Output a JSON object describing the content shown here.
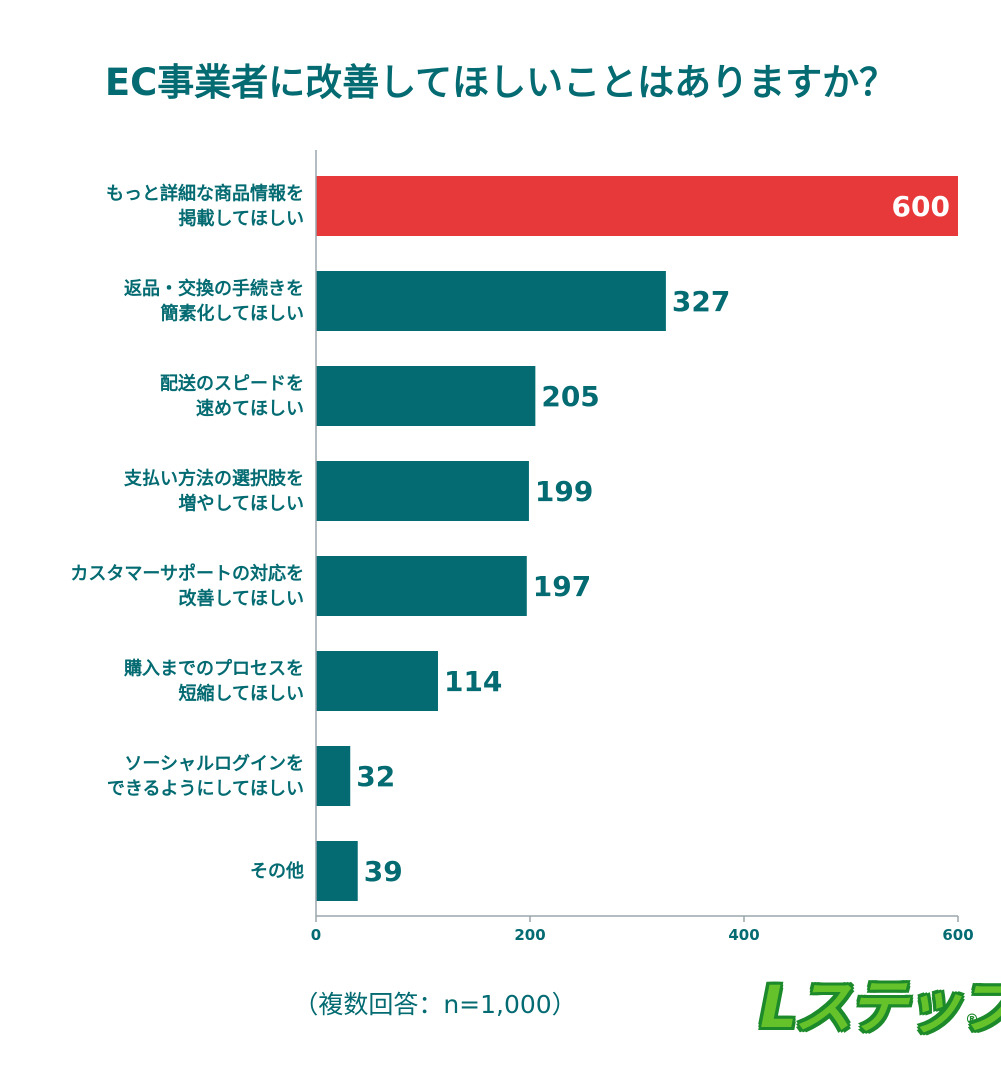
{
  "chart_data": {
    "type": "bar",
    "orientation": "horizontal",
    "title": "EC事業者に改善してほしいことはありますか？",
    "categories": [
      [
        "もっと詳細な商品情報を",
        "掲載してほしい"
      ],
      [
        "返品・交換の手続きを",
        "簡素化してほしい"
      ],
      [
        "配送のスピードを",
        "速めてほしい"
      ],
      [
        "支払い方法の選択肢を",
        "増やしてほしい"
      ],
      [
        "カスタマーサポートの対応を",
        "改善してほしい"
      ],
      [
        "購入までのプロセスを",
        "短縮してほしい"
      ],
      [
        "ソーシャルログインを",
        "できるようにしてほしい"
      ],
      [
        "その他"
      ]
    ],
    "values": [
      600,
      327,
      205,
      199,
      197,
      114,
      32,
      39
    ],
    "xlim": [
      0,
      600
    ],
    "xticks": [
      0,
      200,
      400,
      600
    ],
    "grid": false,
    "colors": {
      "default": "#036b71",
      "highlight": "#e8393a"
    },
    "highlight_index": 0
  },
  "note": "（複数回答：n=1,000）",
  "logo": {
    "text": "Lステップ",
    "mark": "®"
  }
}
